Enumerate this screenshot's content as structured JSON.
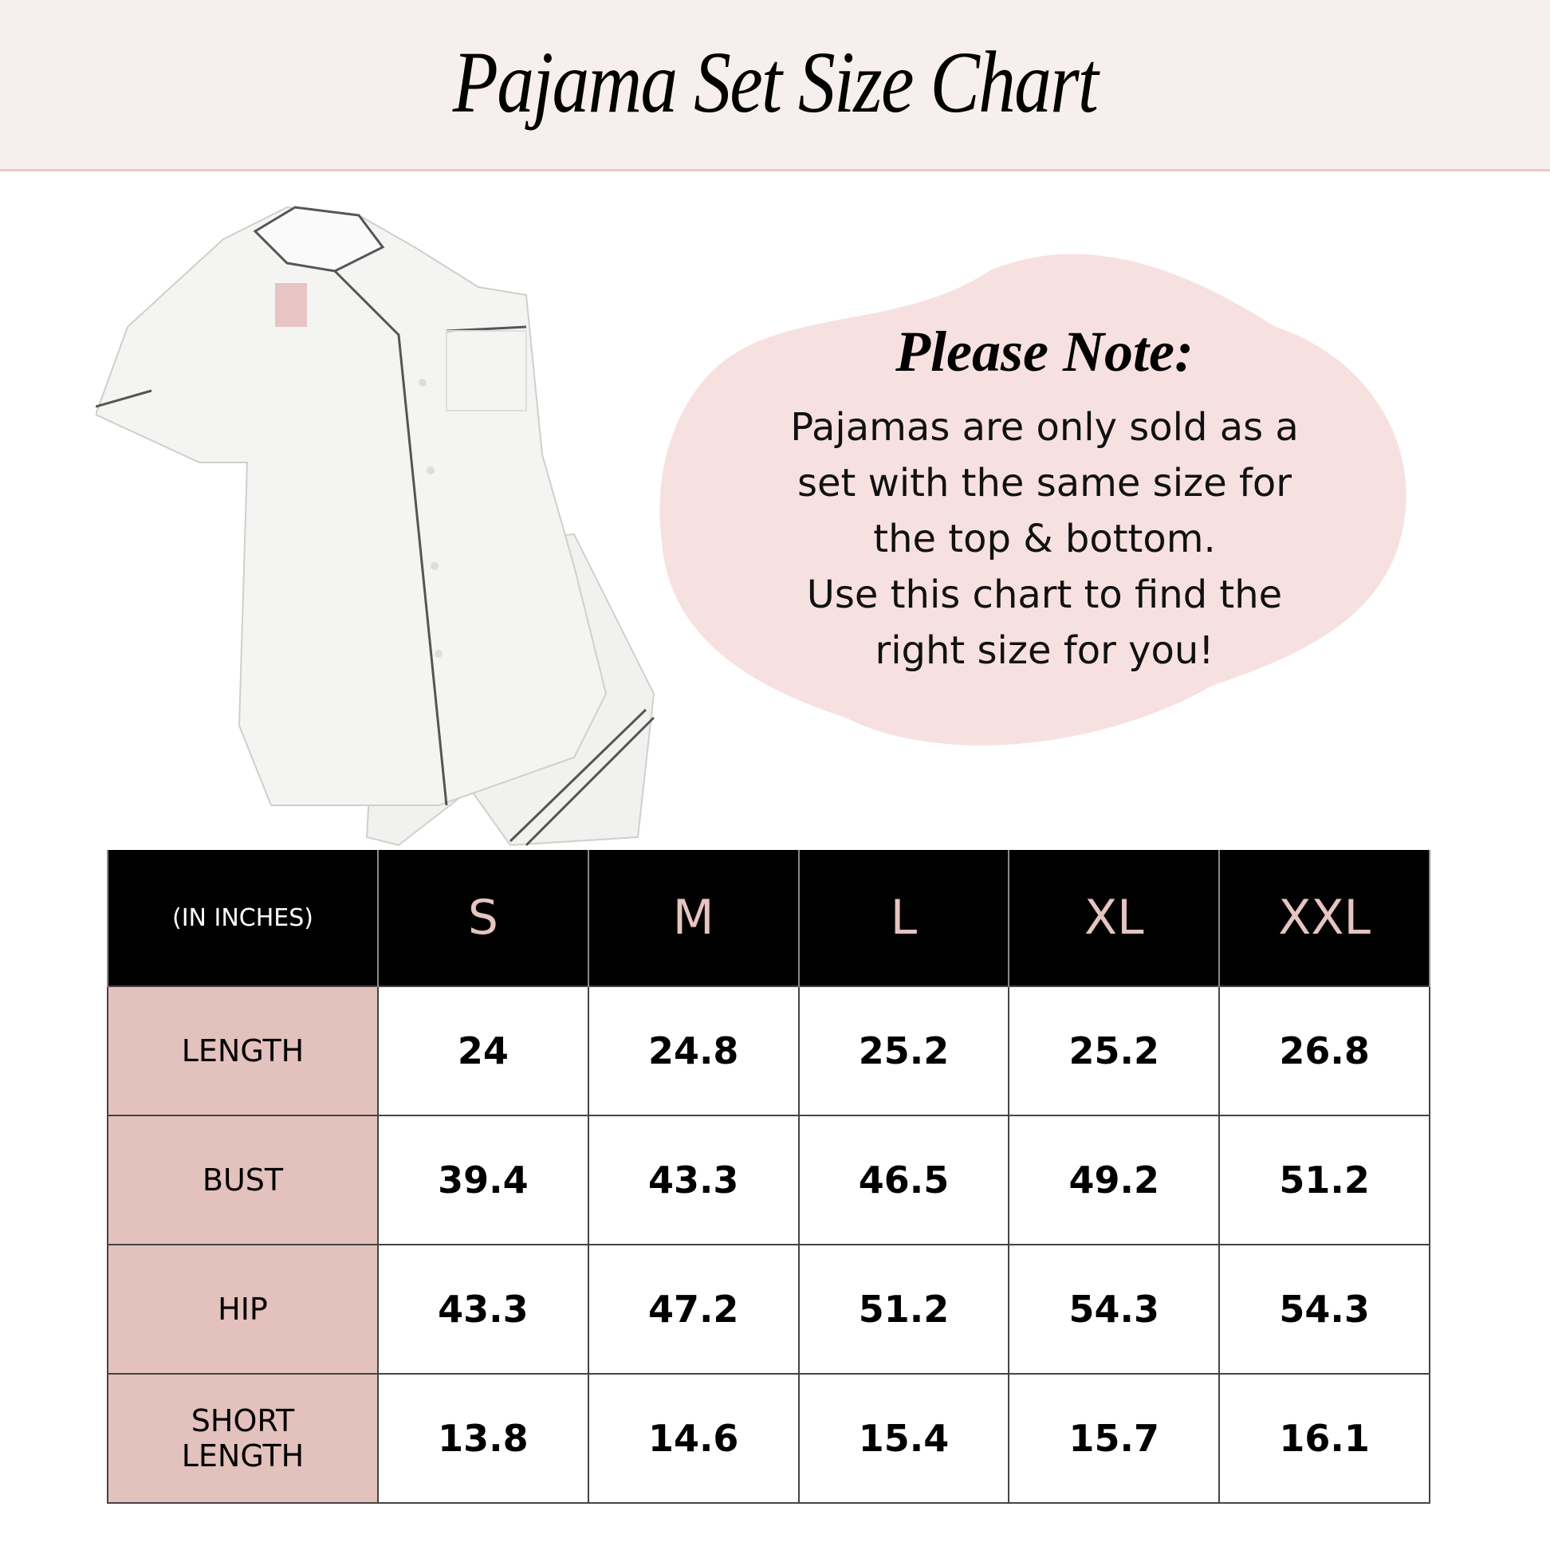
{
  "header": {
    "title": "Pajama Set Size Chart"
  },
  "note": {
    "title": "Please Note:",
    "lines": [
      "Pajamas are only sold as a",
      "set with the same size for",
      "the top & bottom.",
      "Use this chart to find the",
      "right size for you!"
    ]
  },
  "colors": {
    "band": "#f7eeee",
    "accent_pink": "#e3c1bd",
    "size_text": "#e6c4c0",
    "header_bg": "#000000"
  },
  "table": {
    "unit_label": "(IN INCHES)",
    "sizes": [
      "S",
      "M",
      "L",
      "XL",
      "XXL"
    ],
    "rows": [
      {
        "label": "LENGTH",
        "values": [
          "24",
          "24.8",
          "25.2",
          "25.2",
          "26.8"
        ]
      },
      {
        "label": "BUST",
        "values": [
          "39.4",
          "43.3",
          "46.5",
          "49.2",
          "51.2"
        ]
      },
      {
        "label": "HIP",
        "values": [
          "43.3",
          "47.2",
          "51.2",
          "54.3",
          "54.3"
        ]
      },
      {
        "label": "SHORT LENGTH",
        "values": [
          "13.8",
          "14.6",
          "15.4",
          "15.7",
          "16.1"
        ]
      }
    ]
  }
}
